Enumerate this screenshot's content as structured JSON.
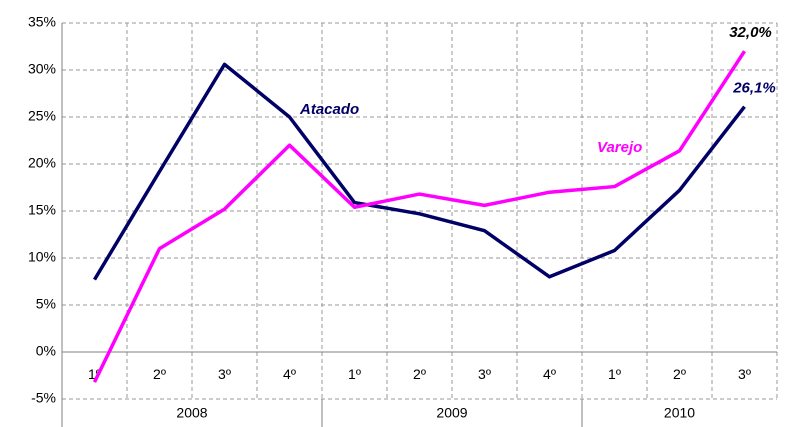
{
  "chart_data": {
    "type": "line",
    "categories": [
      "1º",
      "2º",
      "3º",
      "4º",
      "1º",
      "2º",
      "3º",
      "4º",
      "1º",
      "2º",
      "3º"
    ],
    "groups": [
      {
        "label": "2008",
        "span": 4
      },
      {
        "label": "2009",
        "span": 4
      },
      {
        "label": "2010",
        "span": 3
      }
    ],
    "series": [
      {
        "name": "Atacado",
        "color": "#000066",
        "values": [
          7.7,
          19.2,
          30.6,
          25.0,
          15.9,
          14.7,
          12.9,
          8.0,
          10.8,
          17.2,
          26.1
        ],
        "value_labels": [
          null,
          null,
          null,
          null,
          null,
          null,
          null,
          null,
          null,
          null,
          "26,1%"
        ]
      },
      {
        "name": "Varejo",
        "color": "#ff00ff",
        "values": [
          -3.2,
          11.0,
          15.2,
          22.0,
          15.4,
          16.8,
          15.6,
          17.0,
          17.6,
          21.4,
          32.0
        ],
        "value_labels": [
          null,
          null,
          null,
          null,
          null,
          null,
          null,
          null,
          null,
          null,
          "32,0%"
        ]
      }
    ],
    "ylim": [
      -5,
      35
    ],
    "yticks": [
      {
        "value": -5,
        "label": "-5%"
      },
      {
        "value": 0,
        "label": "0%"
      },
      {
        "value": 5,
        "label": "5%"
      },
      {
        "value": 10,
        "label": "10%"
      },
      {
        "value": 15,
        "label": "15%"
      },
      {
        "value": 20,
        "label": "20%"
      },
      {
        "value": 25,
        "label": "25%"
      },
      {
        "value": 30,
        "label": "30%"
      },
      {
        "value": 35,
        "label": "35%"
      }
    ],
    "grid": true
  }
}
